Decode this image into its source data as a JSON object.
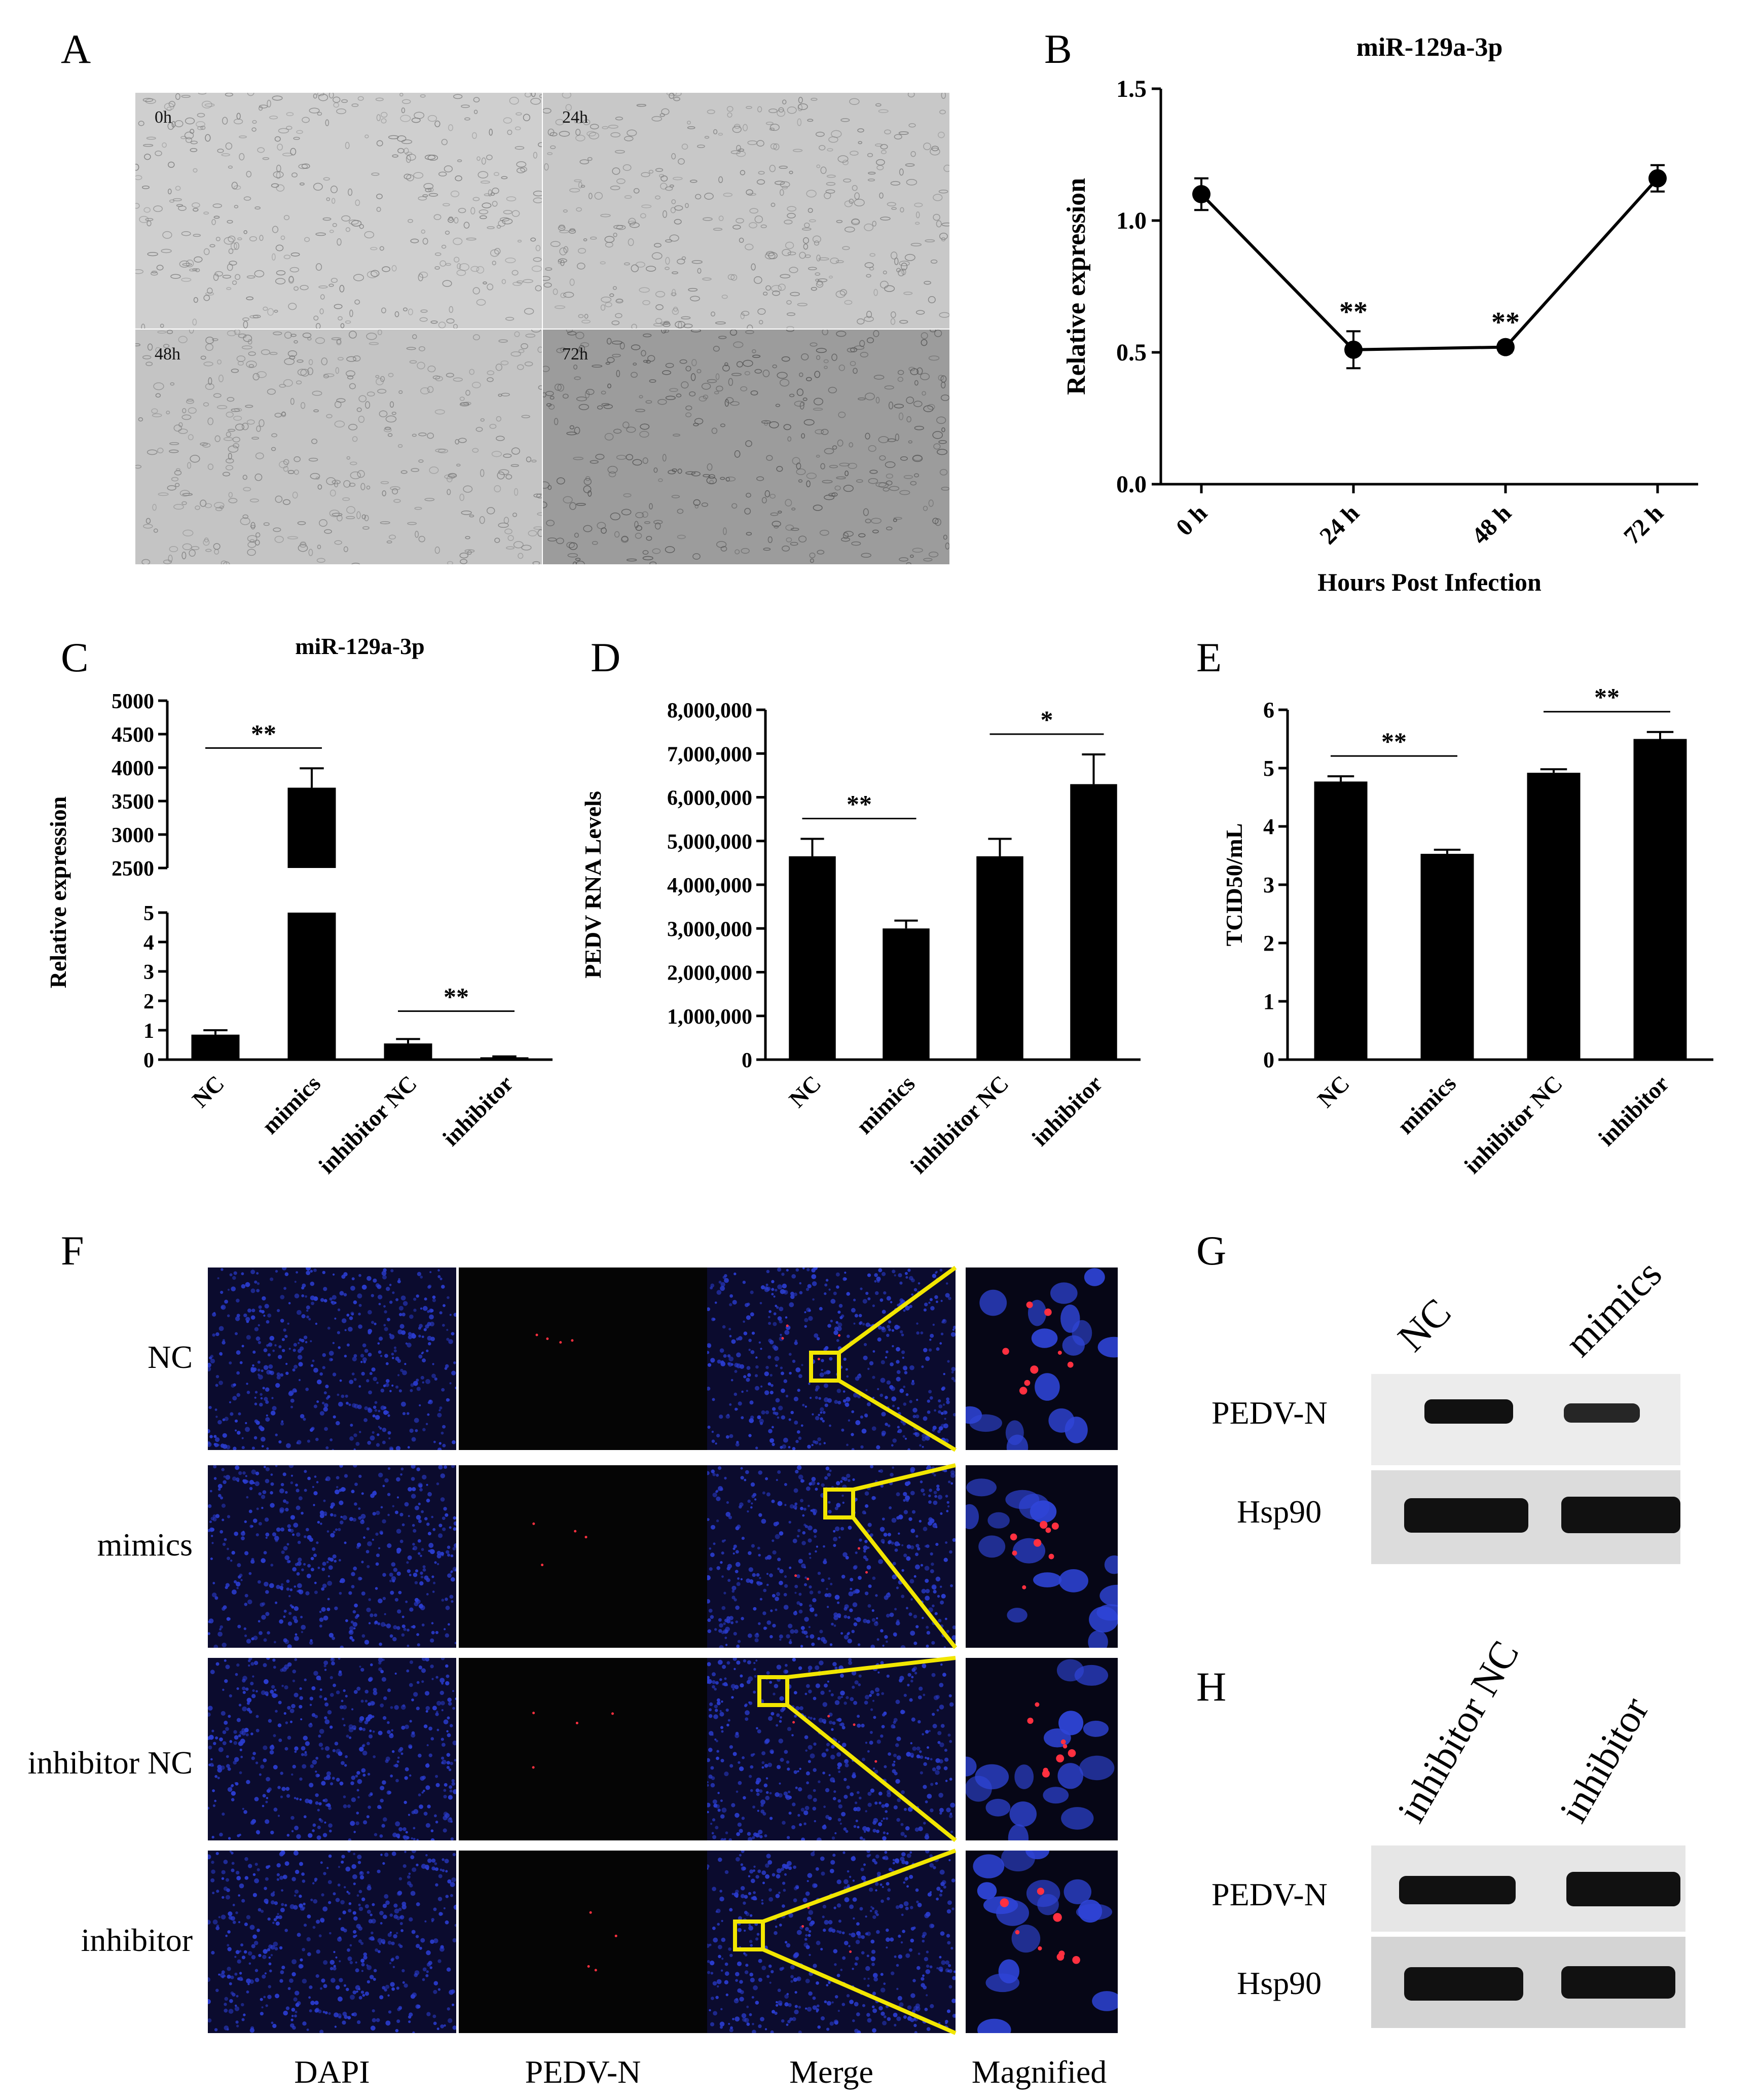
{
  "figure": {
    "panel_letters": [
      "A",
      "B",
      "C",
      "D",
      "E",
      "F",
      "G",
      "H"
    ]
  },
  "panel_a": {
    "labels": [
      "0h",
      "24h",
      "48h",
      "72h"
    ]
  },
  "chart_data": [
    {
      "panel": "B",
      "type": "line",
      "title": "miR-129a-3p",
      "xlabel": "Hours Post Infection",
      "ylabel": "Relative expression",
      "categories": [
        "0 h",
        "24 h",
        "48 h",
        "72 h"
      ],
      "values": [
        1.1,
        0.51,
        0.52,
        1.16
      ],
      "errors": [
        0.06,
        0.07,
        0.02,
        0.05
      ],
      "significance": [
        "",
        "**",
        "**",
        ""
      ],
      "ylim": [
        0,
        1.5
      ],
      "yticks": [
        "0.0",
        "0.5",
        "1.0",
        "1.5"
      ]
    },
    {
      "panel": "C",
      "type": "bar",
      "title": "miR-129a-3p",
      "ylabel": "Relative expression",
      "categories": [
        "NC",
        "mimics",
        "inhibitor NC",
        "inhibitor"
      ],
      "values": [
        0.85,
        3700,
        0.55,
        0.08
      ],
      "errors": [
        0.15,
        290,
        0.15,
        0.03
      ],
      "broken_axis": {
        "lower": [
          0,
          5
        ],
        "upper": [
          2500,
          5000
        ]
      },
      "yticks_lower": [
        "0",
        "1",
        "2",
        "3",
        "4",
        "5"
      ],
      "yticks_upper": [
        "2500",
        "3000",
        "3500",
        "4000",
        "4500",
        "5000"
      ],
      "comparisons": [
        {
          "groups": [
            "NC",
            "mimics"
          ],
          "label": "**"
        },
        {
          "groups": [
            "inhibitor NC",
            "inhibitor"
          ],
          "label": "**"
        }
      ]
    },
    {
      "panel": "D",
      "type": "bar",
      "ylabel": "PEDV RNA Levels",
      "categories": [
        "NC",
        "mimics",
        "inhibitor NC",
        "inhibitor"
      ],
      "values": [
        4650000,
        3000000,
        4650000,
        6300000
      ],
      "errors": [
        400000,
        180000,
        400000,
        680000
      ],
      "ylim": [
        0,
        8000000
      ],
      "yticks": [
        "0",
        "1,000,000",
        "2,000,000",
        "3,000,000",
        "4,000,000",
        "5,000,000",
        "6,000,000",
        "7,000,000",
        "8,000,000"
      ],
      "comparisons": [
        {
          "groups": [
            "NC",
            "mimics"
          ],
          "label": "**"
        },
        {
          "groups": [
            "inhibitor NC",
            "inhibitor"
          ],
          "label": "*"
        }
      ]
    },
    {
      "panel": "E",
      "type": "bar",
      "ylabel": "TCID50/mL",
      "categories": [
        "NC",
        "mimics",
        "inhibitor NC",
        "inhibitor"
      ],
      "values": [
        4.77,
        3.53,
        4.92,
        5.5
      ],
      "errors": [
        0.09,
        0.07,
        0.06,
        0.12
      ],
      "ylim": [
        0,
        6
      ],
      "yticks": [
        "0",
        "1",
        "2",
        "3",
        "4",
        "5",
        "6"
      ],
      "comparisons": [
        {
          "groups": [
            "NC",
            "mimics"
          ],
          "label": "**"
        },
        {
          "groups": [
            "inhibitor NC",
            "inhibitor"
          ],
          "label": "**"
        }
      ]
    }
  ],
  "panel_f": {
    "rows": [
      "NC",
      "mimics",
      "inhibitor NC",
      "inhibitor"
    ],
    "columns": [
      "DAPI",
      "PEDV-N",
      "Merge",
      "Magnified"
    ]
  },
  "panel_g": {
    "lanes": [
      "NC",
      "mimics"
    ],
    "proteins": [
      "PEDV-N",
      "Hsp90"
    ]
  },
  "panel_h": {
    "lanes": [
      "inhibitor NC",
      "inhibitor"
    ],
    "proteins": [
      "PEDV-N",
      "Hsp90"
    ]
  },
  "colors": {
    "bar": "#000000",
    "dapi": "#2a3ccf",
    "signal": "#ff3040",
    "zoom_box": "#f2e600"
  }
}
